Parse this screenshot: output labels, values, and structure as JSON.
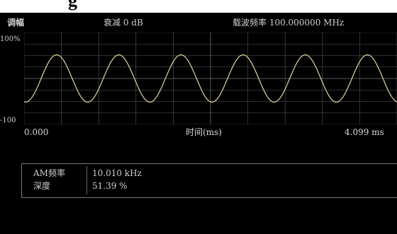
{
  "header": {
    "mode": "调幅",
    "attenuation": "衰减 0 dB",
    "carrier_freq": "载波频率 100.000000 MHz"
  },
  "top_title_fragment": "g",
  "axes": {
    "y_top_label": "100%",
    "y_bottom_label": "-100",
    "x_start_label": "0.000",
    "x_axis_label": "时间(ms)",
    "x_end_label": "4.099 ms"
  },
  "measurements": [
    {
      "label": "AM频率",
      "value": "10.010 kHz"
    },
    {
      "label": "深度",
      "value": "51.39 %"
    }
  ],
  "waveform": {
    "type": "sine",
    "cycles": 6,
    "depth_percent": 51.39,
    "color": "#e8d6a0",
    "grid_color": "#5a5a5a"
  }
}
